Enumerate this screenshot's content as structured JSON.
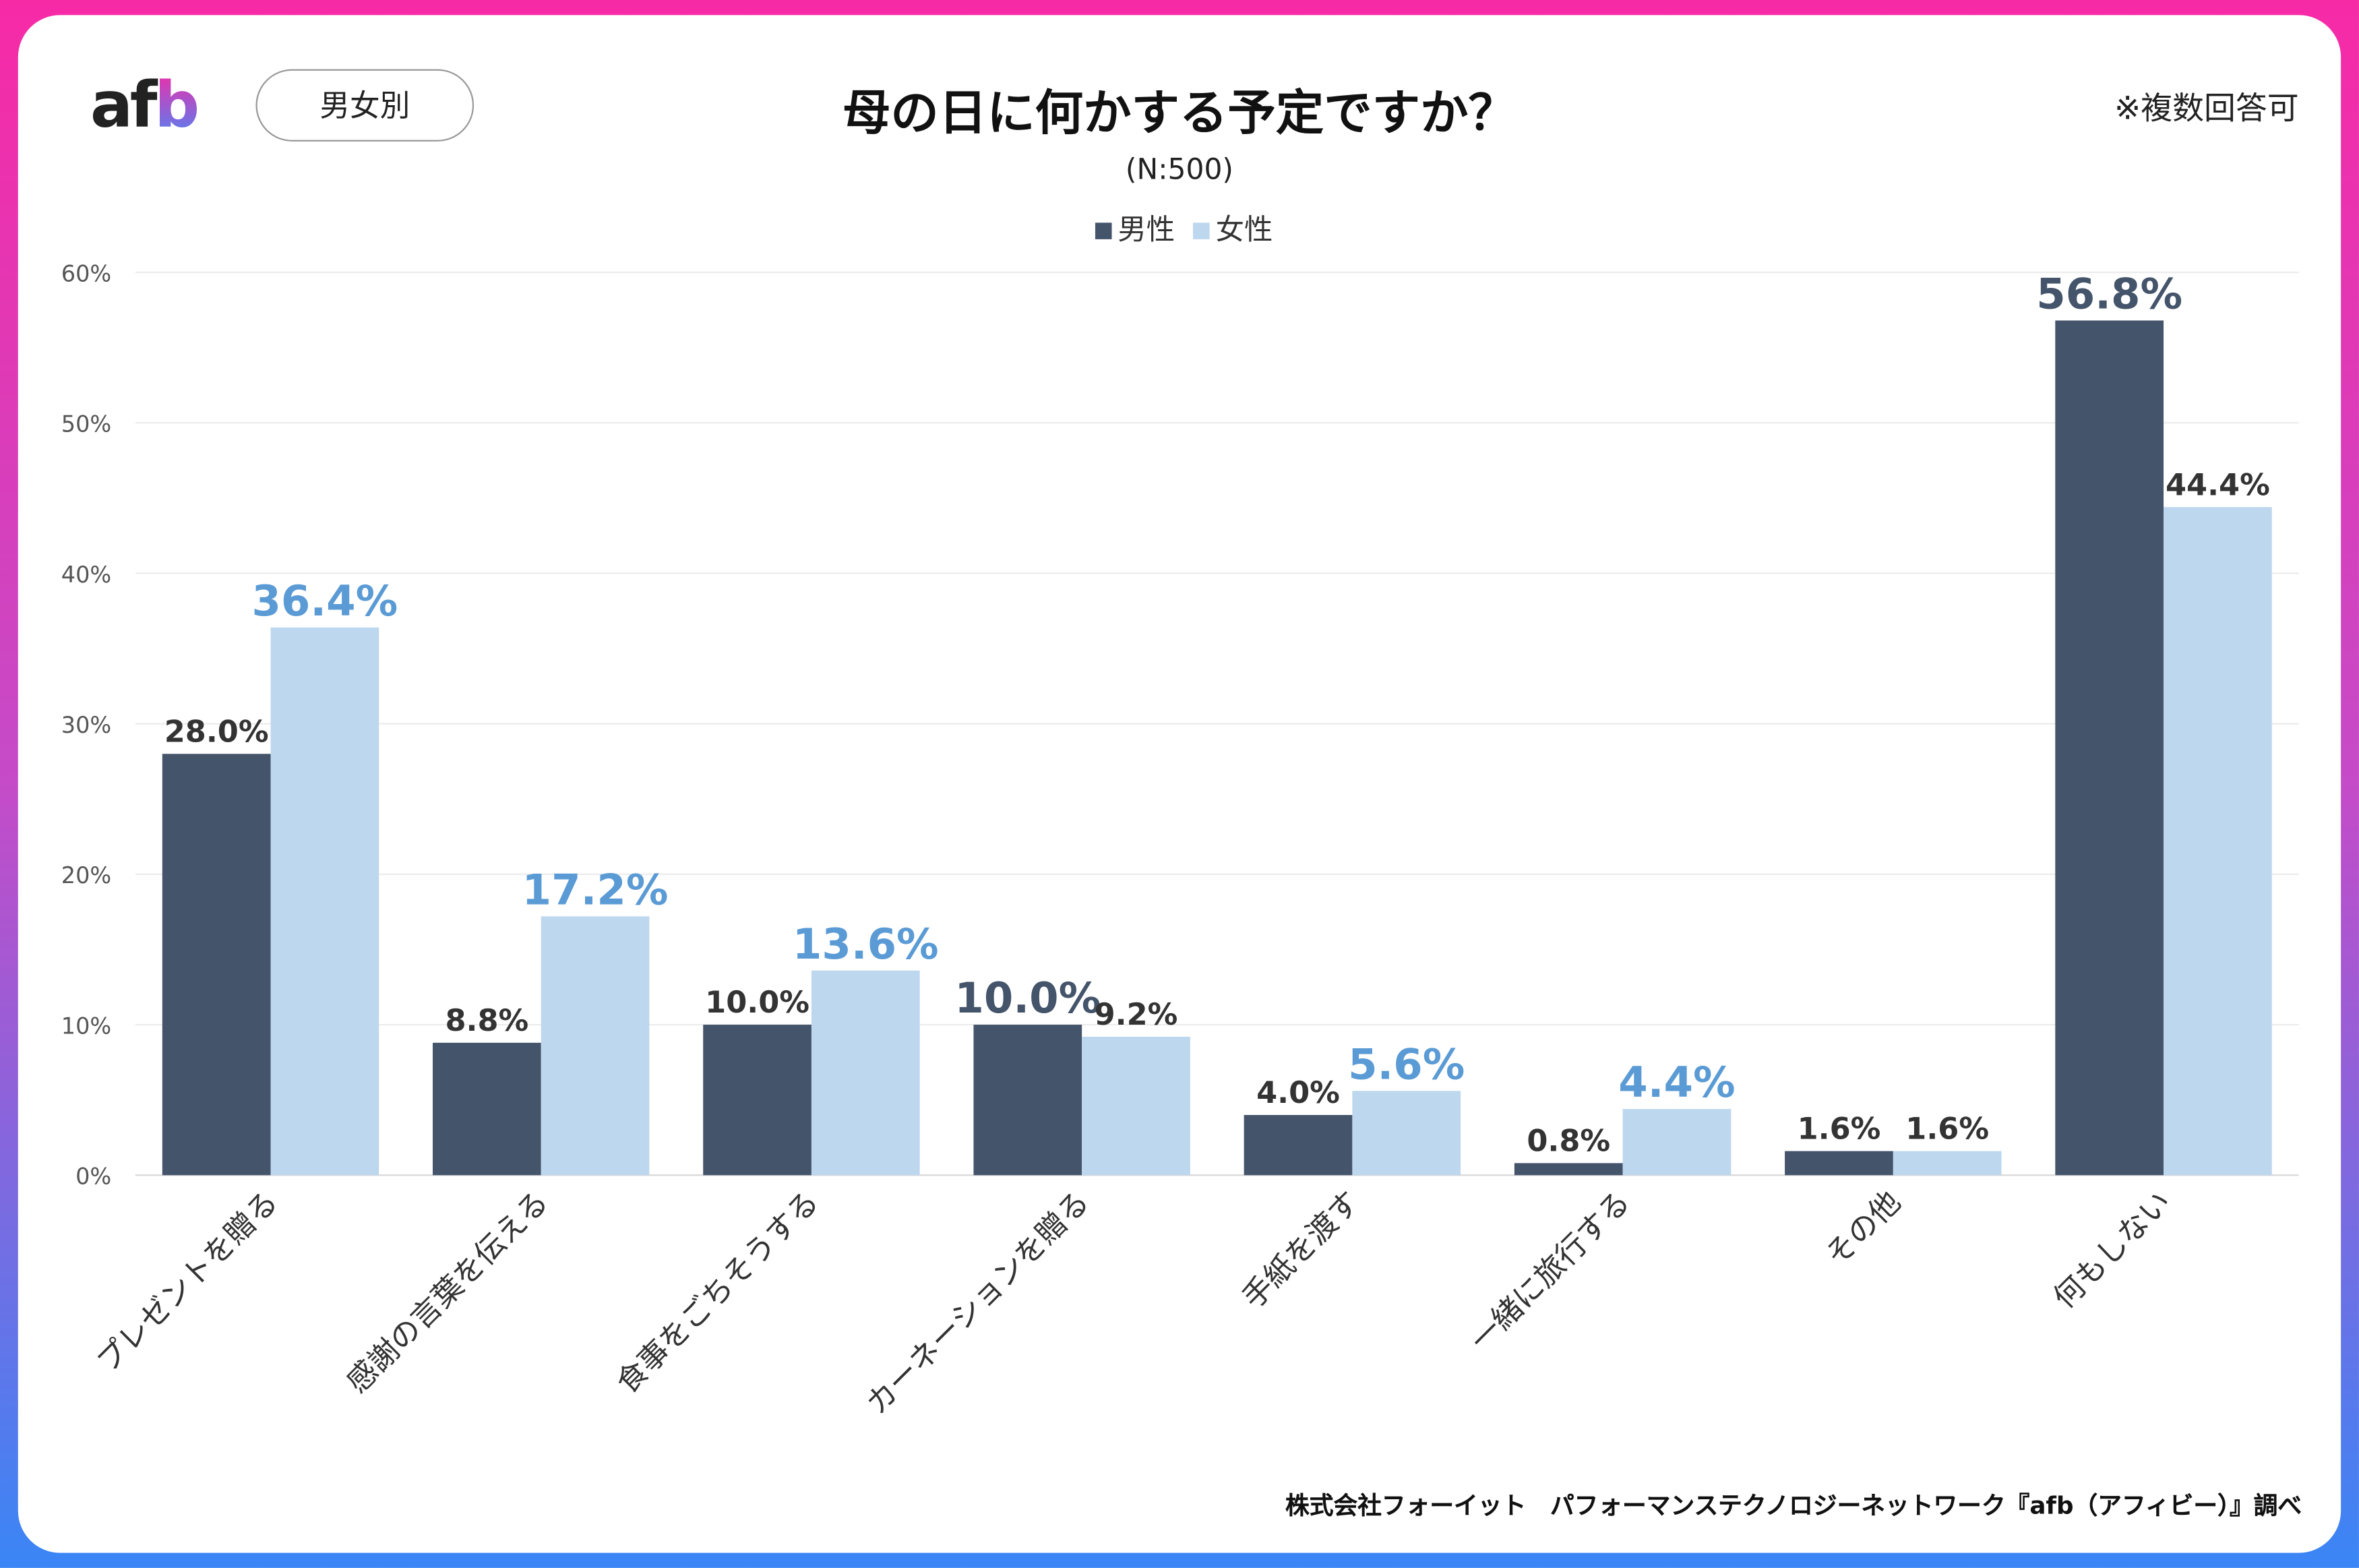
{
  "header": {
    "logo": "afb",
    "logo_a": "af",
    "logo_b": "b",
    "segment_button": "男女別",
    "note": "※複数回答可"
  },
  "footer": "株式会社フォーイット　パフォーマンステクノロジーネットワーク『afb（アフィビー）』調べ",
  "chart_data": {
    "type": "bar",
    "title": "母の日に何かする予定ですか？",
    "subtitle": "(N:500)",
    "xlabel": "",
    "ylabel": "",
    "ylim": [
      0,
      60
    ],
    "yticks": [
      "0%",
      "10%",
      "20%",
      "30%",
      "40%",
      "50%",
      "60%"
    ],
    "grid": true,
    "legend_position": "top-center",
    "categories": [
      "プレゼントを贈る",
      "感謝の言葉を伝える",
      "食事をごちそうする",
      "カーネーションを贈る",
      "手紙を渡す",
      "一緒に旅行する",
      "その他",
      "何もしない"
    ],
    "series": [
      {
        "name": "男性",
        "color": "#44546a",
        "values": [
          28.0,
          8.8,
          10.0,
          10.0,
          4.0,
          0.8,
          1.6,
          56.8
        ],
        "labels": [
          "28.0%",
          "8.8%",
          "10.0%",
          "10.0%",
          "4.0%",
          "0.8%",
          "1.6%",
          "56.8%"
        ],
        "highlight": [
          false,
          false,
          false,
          true,
          false,
          false,
          false,
          true
        ]
      },
      {
        "name": "女性",
        "color": "#bdd7ee",
        "values": [
          36.4,
          17.2,
          13.6,
          9.2,
          5.6,
          4.4,
          1.6,
          44.4
        ],
        "labels": [
          "36.4%",
          "17.2%",
          "13.6%",
          "9.2%",
          "5.6%",
          "4.4%",
          "1.6%",
          "44.4%"
        ],
        "highlight": [
          true,
          true,
          true,
          false,
          true,
          true,
          false,
          false
        ]
      }
    ],
    "highlight_colors": {
      "男性": "#44546a",
      "女性": "#5b9bd5"
    }
  }
}
